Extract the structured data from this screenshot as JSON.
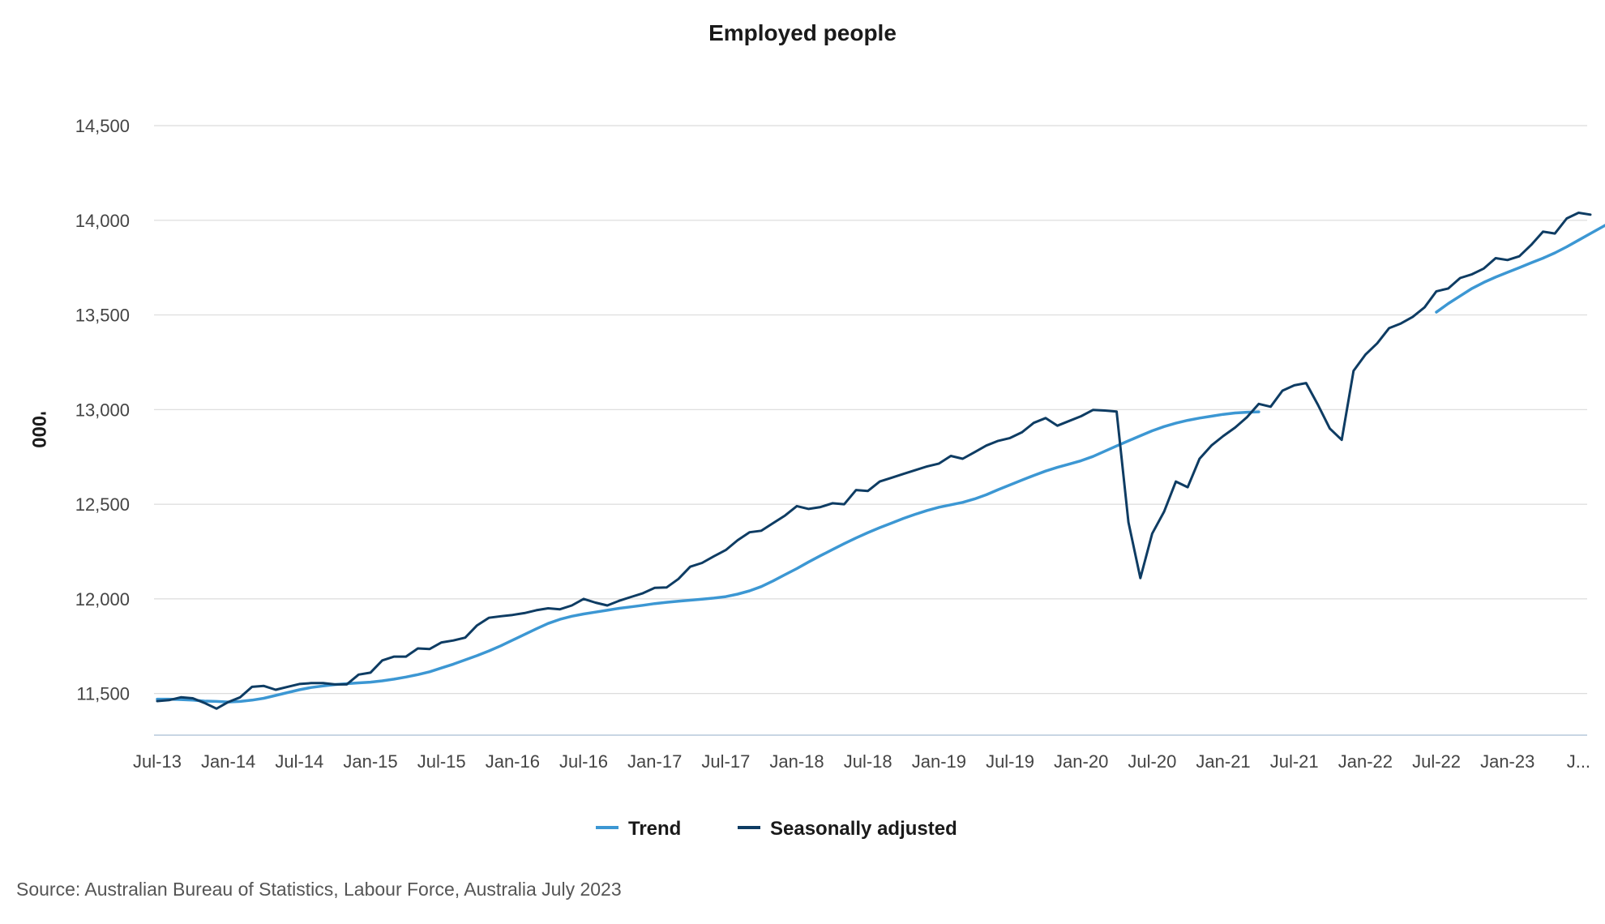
{
  "chart_data": {
    "type": "line",
    "title": "Employed people",
    "ylabel": "'000",
    "xlabel": "",
    "ylim": [
      11280,
      14650
    ],
    "yticks": [
      11500,
      12000,
      12500,
      13000,
      13500,
      14000,
      14500
    ],
    "ytick_labels": [
      "11,500",
      "12,000",
      "12,500",
      "13,000",
      "13,500",
      "14,000",
      "14,500"
    ],
    "x_start": "Jul-13",
    "x_end": "Jul-23",
    "xticks": [
      "Jul-13",
      "Jan-14",
      "Jul-14",
      "Jan-15",
      "Jul-15",
      "Jan-16",
      "Jul-16",
      "Jan-17",
      "Jul-17",
      "Jan-18",
      "Jul-18",
      "Jan-19",
      "Jul-19",
      "Jan-20",
      "Jul-20",
      "Jan-21",
      "Jul-21",
      "Jan-22",
      "Jul-22",
      "Jan-23",
      "J..."
    ],
    "grid": true,
    "legend_position": "bottom",
    "series": [
      {
        "name": "Trend",
        "color": "#3c97d3",
        "segments": [
          {
            "start": "Jul-13",
            "values": [
              11470,
              11470,
              11468,
              11465,
              11460,
              11458,
              11455,
              11458,
              11465,
              11475,
              11490,
              11505,
              11520,
              11532,
              11540,
              11547,
              11552,
              11556,
              11560,
              11567,
              11576,
              11587,
              11600,
              11615,
              11635,
              11655,
              11678,
              11700,
              11725,
              11752,
              11782,
              11812,
              11842,
              11870,
              11892,
              11908,
              11920,
              11930,
              11940,
              11950,
              11958,
              11966,
              11975,
              11982,
              11988,
              11993,
              11998,
              12004,
              12012,
              12025,
              12042,
              12065,
              12095,
              12128,
              12160,
              12195,
              12228,
              12260,
              12292,
              12322,
              12350,
              12376,
              12400,
              12425,
              12447,
              12467,
              12484,
              12497,
              12510,
              12528,
              12550,
              12577,
              12602,
              12627,
              12652,
              12675,
              12695,
              12712,
              12730,
              12752,
              12780,
              12808,
              12835,
              12862,
              12888,
              12910,
              12928,
              12943,
              12955,
              12965,
              12975,
              12982,
              12986,
              12988
            ]
          },
          {
            "start": "Jul-22",
            "values": [
              13515,
              13560,
              13600,
              13640,
              13672,
              13700,
              13725,
              13750,
              13775,
              13800,
              13828,
              13860,
              13895,
              13930,
              13965,
              14000,
              14030,
              14058
            ]
          }
        ]
      },
      {
        "name": "Seasonally adjusted",
        "color": "#0e3c63",
        "segments": [
          {
            "start": "Jul-13",
            "values": [
              11460,
              11465,
              11480,
              11475,
              11450,
              11420,
              11455,
              11480,
              11535,
              11540,
              11520,
              11535,
              11550,
              11555,
              11555,
              11548,
              11548,
              11600,
              11610,
              11675,
              11695,
              11695,
              11738,
              11735,
              11770,
              11780,
              11795,
              11860,
              11900,
              11908,
              11915,
              11925,
              11940,
              11950,
              11945,
              11965,
              12000,
              11980,
              11965,
              11990,
              12010,
              12030,
              12058,
              12060,
              12105,
              12170,
              12190,
              12225,
              12258,
              12310,
              12352,
              12360,
              12400,
              12440,
              12490,
              12475,
              12485,
              12505,
              12500,
              12575,
              12570,
              12620,
              12640,
              12660,
              12680,
              12700,
              12715,
              12755,
              12740,
              12775,
              12810,
              12835,
              12850,
              12880,
              12930,
              12955,
              12915,
              12940,
              12965,
              12998,
              12995,
              12990,
              12405,
              12110,
              12345,
              12460,
              12620,
              12590,
              12740,
              12810,
              12860,
              12905,
              12960,
              13030,
              13015,
              13100,
              13128,
              13140,
              13025,
              12900,
              12840,
              13205,
              13290,
              13350,
              13430,
              13455,
              13490,
              13540,
              13625,
              13640,
              13695,
              13715,
              13745,
              13800,
              13790,
              13810,
              13870,
              13940,
              13930,
              14010,
              14040,
              14030
            ]
          }
        ]
      }
    ],
    "source": "Source: Australian Bureau of Statistics, Labour Force, Australia July 2023"
  }
}
